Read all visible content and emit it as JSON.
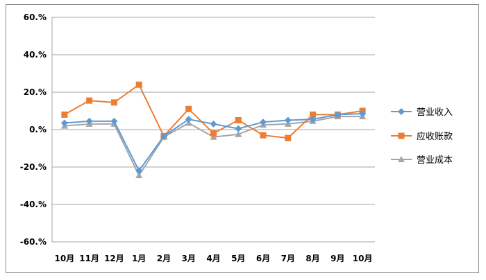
{
  "chart_data": {
    "type": "line",
    "categories": [
      "10月",
      "11月",
      "12月",
      "1月",
      "2月",
      "3月",
      "4月",
      "5月",
      "6月",
      "7月",
      "8月",
      "9月",
      "10月"
    ],
    "yticks": [
      "60.%",
      "40.%",
      "20.%",
      "0.%",
      "-20.%",
      "-40.%",
      "-60.%"
    ],
    "ylim": [
      -60,
      60
    ],
    "grid": true,
    "legend_position": "right",
    "series": [
      {
        "name": "营业收入",
        "color": "#5b9bd5",
        "marker": "diamond",
        "values": [
          3.5,
          4.5,
          4.5,
          -22.0,
          -3.5,
          5.5,
          3.0,
          0.5,
          4.0,
          5.0,
          5.5,
          8.0,
          8.5
        ]
      },
      {
        "name": "应收账款",
        "color": "#ed7d31",
        "marker": "square",
        "values": [
          8.0,
          15.5,
          14.5,
          24.0,
          -3.5,
          11.0,
          -2.0,
          5.0,
          -3.0,
          -4.5,
          8.0,
          8.0,
          10.0
        ]
      },
      {
        "name": "营业成本",
        "color": "#a5a5a5",
        "marker": "triangle",
        "values": [
          2.0,
          3.0,
          3.0,
          -24.5,
          -4.0,
          3.5,
          -4.0,
          -2.5,
          2.5,
          3.0,
          4.5,
          7.0,
          7.0
        ]
      }
    ]
  }
}
